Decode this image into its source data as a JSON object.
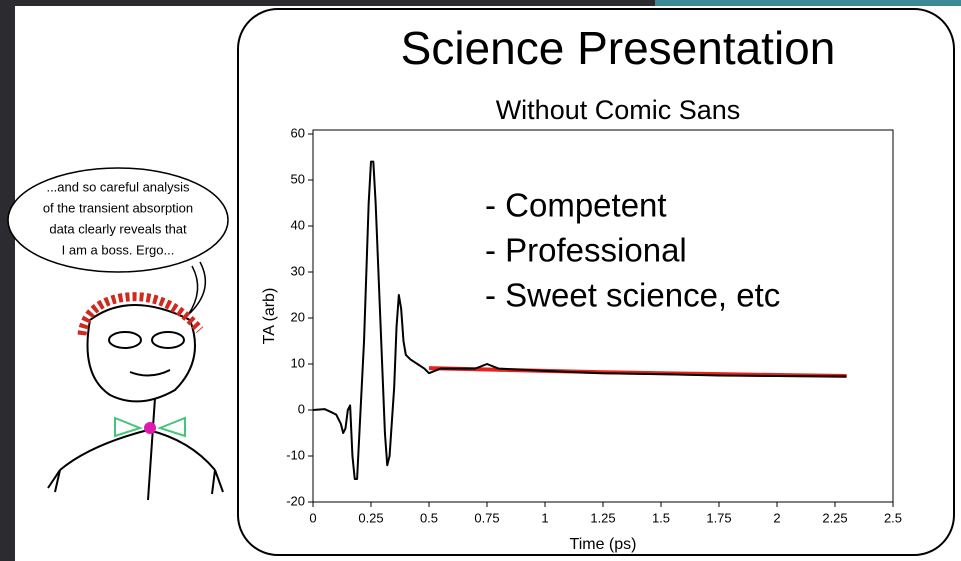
{
  "chart_data": {
    "type": "line",
    "title": "Science Presentation",
    "subtitle": "Without Comic Sans",
    "x_label": "Time (ps)",
    "y_label": "TA (arb)",
    "annotations": [
      "- Competent",
      "- Professional",
      "- Sweet science, etc"
    ],
    "xlim": [
      0,
      2.5
    ],
    "xticks": [
      0,
      0.25,
      0.5,
      0.75,
      1,
      1.25,
      1.5,
      1.75,
      2,
      2.25,
      2.5
    ],
    "ylim": [
      -20,
      60
    ],
    "yticks": [
      -20,
      -10,
      0,
      10,
      20,
      30,
      40,
      50,
      60
    ],
    "series": [
      {
        "color": "#e8231c",
        "x": [
          0.5,
          0.75,
          1,
          1.25,
          1.5,
          1.75,
          2,
          2.3
        ],
        "values": [
          9.1,
          8.8,
          8.5,
          8.2,
          8,
          7.8,
          7.6,
          7.4
        ]
      },
      {
        "color": "#000000",
        "x": [
          0,
          0.05,
          0.08,
          0.1,
          0.12,
          0.13,
          0.14,
          0.15,
          0.16,
          0.17,
          0.18,
          0.19,
          0.2,
          0.22,
          0.24,
          0.25,
          0.26,
          0.27,
          0.29,
          0.31,
          0.32,
          0.33,
          0.35,
          0.36,
          0.37,
          0.38,
          0.39,
          0.4,
          0.42,
          0.45,
          0.48,
          0.5,
          0.55,
          0.6,
          0.7,
          0.75,
          0.8,
          1,
          1.25,
          1.5,
          1.75,
          2,
          2.3
        ],
        "values": [
          0,
          0.2,
          -0.5,
          -1,
          -3,
          -5,
          -4,
          0,
          1,
          -10,
          -15,
          -15,
          -5,
          15,
          45,
          54,
          54,
          45,
          20,
          -5,
          -12,
          -10,
          5,
          18,
          25,
          22,
          15,
          12,
          11,
          10,
          9,
          8,
          9,
          9,
          9,
          10,
          9,
          8.5,
          8,
          7.8,
          7.5,
          7.4,
          7.3
        ]
      }
    ]
  },
  "speech_bubble": {
    "lines": [
      "...and so careful analysis",
      "of the transient absorption",
      "data clearly reveals that",
      "I am a boss. Ergo..."
    ]
  }
}
